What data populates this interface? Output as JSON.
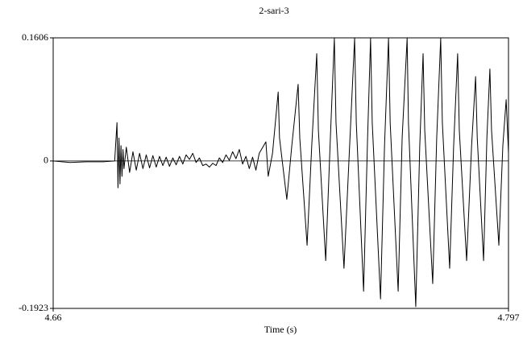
{
  "chart_data": {
    "type": "line",
    "title": "2-sari-3",
    "x_label": "Time (s)",
    "color": "#000000",
    "grid": true,
    "xlim": [
      4.66,
      4.797
    ],
    "xticks": [
      4.66,
      4.797
    ],
    "ylim": [
      -0.1923,
      0.1606
    ],
    "yticks": [
      0.1606,
      0,
      -0.1923
    ],
    "x": [
      4.66,
      4.665,
      4.67,
      4.675,
      4.6785,
      4.6792,
      4.6795,
      4.6798,
      4.6801,
      4.6804,
      4.6807,
      4.681,
      4.6813,
      4.682,
      4.683,
      4.684,
      4.685,
      4.686,
      4.687,
      4.688,
      4.689,
      4.69,
      4.691,
      4.692,
      4.693,
      4.694,
      4.695,
      4.696,
      4.697,
      4.698,
      4.699,
      4.7,
      4.701,
      4.702,
      4.703,
      4.704,
      4.705,
      4.706,
      4.707,
      4.708,
      4.709,
      4.71,
      4.711,
      4.712,
      4.713,
      4.714,
      4.715,
      4.716,
      4.717,
      4.718,
      4.719,
      4.72,
      4.721,
      4.722,
      4.724,
      4.7247,
      4.726,
      4.7277,
      4.7281,
      4.7303,
      4.7318,
      4.7337,
      4.7342,
      4.7364,
      4.7378,
      4.7393,
      4.7398,
      4.742,
      4.7434,
      4.7446,
      4.7451,
      4.7475,
      4.7492,
      4.7507,
      4.7512,
      4.7534,
      4.7546,
      4.7555,
      4.756,
      4.7585,
      4.7597,
      4.7609,
      4.7614,
      4.7638,
      4.765,
      4.7665,
      4.7669,
      4.7691,
      4.7703,
      4.7713,
      4.7718,
      4.7742,
      4.7754,
      4.7766,
      4.7771,
      4.7793,
      4.7805,
      4.7817,
      4.7822,
      4.7844,
      4.7859,
      4.7871,
      4.7876,
      4.7895,
      4.7905,
      4.7914,
      4.7919,
      4.7941,
      4.7953,
      4.7963,
      4.797
    ],
    "values": [
      0,
      -0.002,
      -0.001,
      -0.001,
      0,
      0.05,
      -0.035,
      0.03,
      -0.03,
      0.02,
      -0.02,
      0.015,
      -0.01,
      0.018,
      -0.015,
      0.012,
      -0.012,
      0.01,
      -0.01,
      0.008,
      -0.009,
      0.007,
      -0.008,
      0.006,
      -0.006,
      0.005,
      -0.007,
      0.004,
      -0.005,
      0.006,
      -0.004,
      0.008,
      0.002,
      0.01,
      -0.002,
      0.004,
      -0.006,
      -0.004,
      -0.008,
      -0.003,
      -0.006,
      0.004,
      -0.002,
      0.008,
      0.001,
      0.012,
      0.003,
      0.015,
      -0.004,
      0.006,
      -0.01,
      0.005,
      -0.012,
      0.01,
      0.025,
      -0.02,
      0.01,
      0.09,
      0.03,
      -0.05,
      0.02,
      0.1,
      0.03,
      -0.11,
      0.02,
      0.14,
      0.04,
      -0.13,
      0.03,
      0.16,
      0.05,
      -0.14,
      0.02,
      0.16,
      0.05,
      -0.17,
      0.03,
      0.16,
      0.05,
      -0.18,
      0.02,
      0.16,
      0.05,
      -0.17,
      0.03,
      0.16,
      0.05,
      -0.19,
      0.02,
      0.14,
      0.04,
      -0.16,
      0.03,
      0.16,
      0.05,
      -0.14,
      0.02,
      0.14,
      0.04,
      -0.13,
      0.02,
      0.11,
      0.03,
      -0.13,
      0.03,
      0.12,
      0.04,
      -0.11,
      0.02,
      0.08,
      0.01
    ]
  }
}
